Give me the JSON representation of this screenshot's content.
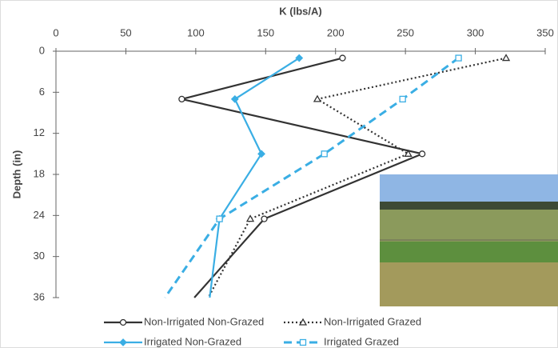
{
  "chart_data": {
    "type": "line",
    "xlabel": "K (lbs/A)",
    "ylabel": "Depth (in)",
    "xlim": [
      0,
      350
    ],
    "xticks": [
      0,
      50,
      100,
      150,
      200,
      250,
      300,
      350
    ],
    "ylim": [
      0,
      36
    ],
    "yticks": [
      0,
      6,
      12,
      18,
      24,
      30,
      36
    ],
    "y_inverted": true,
    "x_axis_position": "top",
    "grid": false,
    "series": [
      {
        "name": "Non-Irrigated Non-Grazed",
        "color": "#333333",
        "line_style": "solid",
        "marker": "circle",
        "marker_fill": false,
        "x": [
          205,
          90,
          262,
          149,
          99
        ],
        "values": [
          1,
          7,
          15,
          24.5,
          36
        ]
      },
      {
        "name": "Non-Irrigated Grazed",
        "color": "#333333",
        "line_style": "dotted",
        "marker": "triangle",
        "marker_fill": false,
        "x": [
          322,
          187,
          252,
          139,
          109
        ],
        "values": [
          1,
          7,
          15,
          24.5,
          36
        ]
      },
      {
        "name": "Irrigated Non-Grazed",
        "color": "#3aaee4",
        "line_style": "solid",
        "marker": "diamond",
        "marker_fill": true,
        "x": [
          174,
          128,
          147,
          117,
          110
        ],
        "values": [
          1,
          7,
          15,
          24.5,
          36
        ]
      },
      {
        "name": "Irrigated Grazed",
        "color": "#3aaee4",
        "line_style": "dashed",
        "marker": "square",
        "marker_fill": false,
        "x": [
          288,
          248,
          192,
          117,
          78
        ],
        "values": [
          1,
          7,
          15,
          24.5,
          36
        ]
      }
    ]
  }
}
